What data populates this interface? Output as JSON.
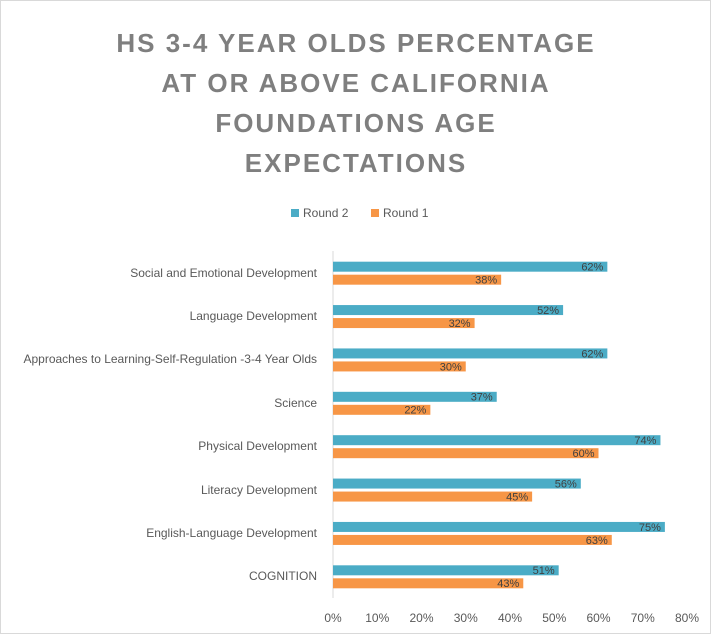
{
  "chart_data": {
    "type": "bar",
    "orientation": "horizontal",
    "title": "HS 3-4 YEAR OLDS PERCENTAGE AT OR ABOVE CALIFORNIA FOUNDATIONS AGE EXPECTATIONS",
    "categories": [
      "Social and Emotional Development",
      "Language Development",
      "Approaches to Learning-Self-Regulation -3-4 Year Olds",
      "Science",
      "Physical Development",
      "Literacy Development",
      "English-Language Development",
      "COGNITION"
    ],
    "series": [
      {
        "name": "Round 2",
        "color": "#4bacc6",
        "values": [
          62,
          52,
          62,
          37,
          74,
          56,
          75,
          51
        ],
        "value_labels": [
          "62%",
          "52%",
          "62%",
          "37%",
          "74%",
          "56%",
          "75%",
          "51%"
        ]
      },
      {
        "name": "Round 1",
        "color": "#f79646",
        "values": [
          38,
          32,
          30,
          22,
          60,
          45,
          63,
          43
        ],
        "value_labels": [
          "38%",
          "32%",
          "30%",
          "22%",
          "60%",
          "45%",
          "63%",
          "43%"
        ]
      }
    ],
    "xlim": [
      0,
      80
    ],
    "xticks": [
      {
        "value": 0,
        "label": "0%"
      },
      {
        "value": 10,
        "label": "10%"
      },
      {
        "value": 20,
        "label": "20%"
      },
      {
        "value": 30,
        "label": "30%"
      },
      {
        "value": 40,
        "label": "40%"
      },
      {
        "value": 50,
        "label": "50%"
      },
      {
        "value": 60,
        "label": "60%"
      },
      {
        "value": 70,
        "label": "70%"
      },
      {
        "value": 80,
        "label": "80%"
      }
    ],
    "legend": "top"
  }
}
